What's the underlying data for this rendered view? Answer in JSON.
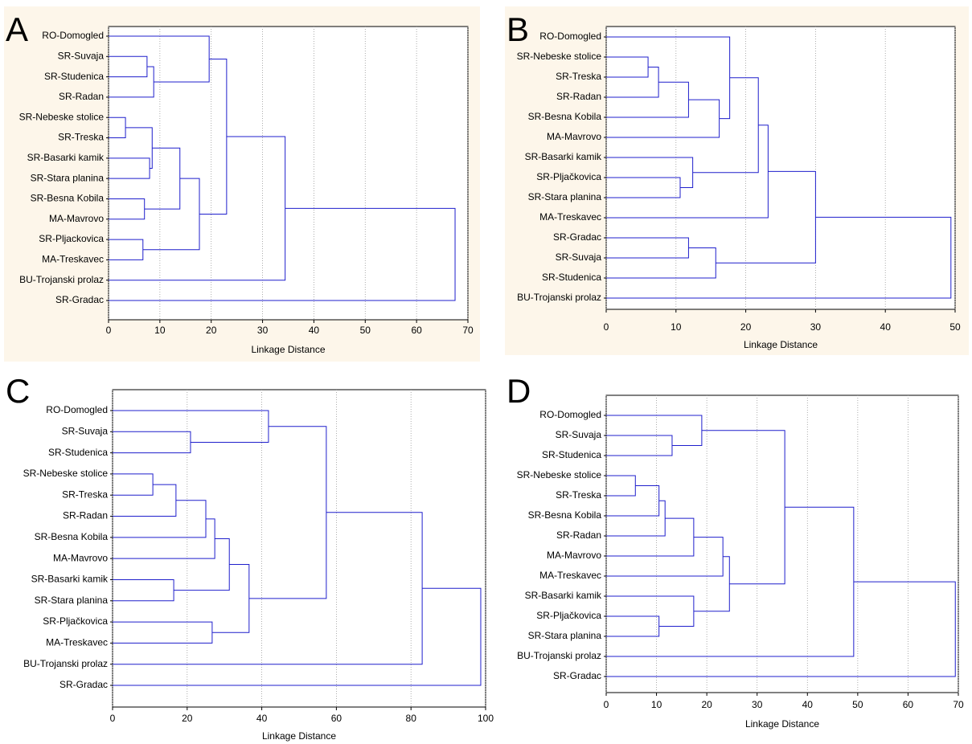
{
  "chart_data": [
    {
      "type": "dendrogram",
      "panel_label": "A",
      "x_label": "Linkage Distance",
      "color": "#1f1fcc",
      "grid": true,
      "xlim": [
        0,
        70
      ],
      "xticks": [
        0,
        10,
        20,
        30,
        40,
        50,
        60,
        70
      ],
      "leaves": [
        "RO-Domogled",
        "SR-Suvaja",
        "SR-Studenica",
        "SR-Radan",
        "SR-Nebeske stolice",
        "SR-Treska",
        "SR-Basarki kamik",
        "SR-Stara planina",
        "SR-Besna Kobila",
        "MA-Mavrovo",
        "SR-Pljackovica",
        "MA-Treskavec",
        "BU-Trojanski prolaz",
        "SR-Gradac"
      ],
      "merges": [
        {
          "join": [
            1,
            2
          ],
          "distance": 7.5
        },
        {
          "join": [
            14,
            3
          ],
          "distance": 8.8
        },
        {
          "join": [
            0,
            15
          ],
          "distance": 19.6
        },
        {
          "join": [
            4,
            5
          ],
          "distance": 3.3
        },
        {
          "join": [
            6,
            7
          ],
          "distance": 8.0
        },
        {
          "join": [
            17,
            18
          ],
          "distance": 8.5
        },
        {
          "join": [
            8,
            9
          ],
          "distance": 7.0
        },
        {
          "join": [
            19,
            20
          ],
          "distance": 13.9
        },
        {
          "join": [
            10,
            11
          ],
          "distance": 6.7
        },
        {
          "join": [
            21,
            22
          ],
          "distance": 17.7
        },
        {
          "join": [
            16,
            23
          ],
          "distance": 23.0
        },
        {
          "join": [
            24,
            12
          ],
          "distance": 34.4
        },
        {
          "join": [
            25,
            13
          ],
          "distance": 67.5
        }
      ]
    },
    {
      "type": "dendrogram",
      "panel_label": "B",
      "x_label": "Linkage Distance",
      "color": "#1f1fcc",
      "grid": true,
      "xlim": [
        0,
        50
      ],
      "xticks": [
        0,
        10,
        20,
        30,
        40,
        50
      ],
      "leaves": [
        "RO-Domogled",
        "SR-Nebeske stolice",
        "SR-Treska",
        "SR-Radan",
        "SR-Besna Kobila",
        "MA-Mavrovo",
        "SR-Basarki kamik",
        "SR-Pljačkovica",
        "SR-Stara planina",
        "MA-Treskavec",
        "SR-Gradac",
        "SR-Suvaja",
        "SR-Studenica",
        "BU-Trojanski prolaz"
      ],
      "merges": [
        {
          "join": [
            1,
            2
          ],
          "distance": 6.0
        },
        {
          "join": [
            14,
            3
          ],
          "distance": 7.5
        },
        {
          "join": [
            15,
            4
          ],
          "distance": 11.8
        },
        {
          "join": [
            16,
            5
          ],
          "distance": 16.2
        },
        {
          "join": [
            0,
            17
          ],
          "distance": 17.7
        },
        {
          "join": [
            7,
            8
          ],
          "distance": 10.6
        },
        {
          "join": [
            6,
            19
          ],
          "distance": 12.4
        },
        {
          "join": [
            18,
            20
          ],
          "distance": 21.8
        },
        {
          "join": [
            21,
            9
          ],
          "distance": 23.2
        },
        {
          "join": [
            10,
            11
          ],
          "distance": 11.8
        },
        {
          "join": [
            23,
            12
          ],
          "distance": 15.7
        },
        {
          "join": [
            22,
            24
          ],
          "distance": 30.0
        },
        {
          "join": [
            25,
            13
          ],
          "distance": 49.4
        }
      ]
    },
    {
      "type": "dendrogram",
      "panel_label": "C",
      "x_label": "Linkage Distance",
      "color": "#1f1fcc",
      "grid": true,
      "xlim": [
        0,
        100
      ],
      "xticks": [
        0,
        20,
        40,
        60,
        80,
        100
      ],
      "leaves": [
        "RO-Domogled",
        "SR-Suvaja",
        "SR-Studenica",
        "SR-Nebeske stolice",
        "SR-Treska",
        "SR-Radan",
        "SR-Besna Kobila",
        "MA-Mavrovo",
        "SR-Basarki kamik",
        "SR-Stara planina",
        "SR-Pljačkovica",
        "MA-Treskavec",
        "BU-Trojanski prolaz",
        "SR-Gradac"
      ],
      "merges": [
        {
          "join": [
            1,
            2
          ],
          "distance": 20.9
        },
        {
          "join": [
            0,
            14
          ],
          "distance": 41.8
        },
        {
          "join": [
            3,
            4
          ],
          "distance": 10.8
        },
        {
          "join": [
            16,
            5
          ],
          "distance": 17.0
        },
        {
          "join": [
            17,
            6
          ],
          "distance": 25.0
        },
        {
          "join": [
            18,
            7
          ],
          "distance": 27.4
        },
        {
          "join": [
            8,
            9
          ],
          "distance": 16.4
        },
        {
          "join": [
            19,
            20
          ],
          "distance": 31.3
        },
        {
          "join": [
            10,
            11
          ],
          "distance": 26.7
        },
        {
          "join": [
            21,
            22
          ],
          "distance": 36.6
        },
        {
          "join": [
            15,
            23
          ],
          "distance": 57.3
        },
        {
          "join": [
            24,
            12
          ],
          "distance": 83.0
        },
        {
          "join": [
            25,
            13
          ],
          "distance": 98.7
        }
      ]
    },
    {
      "type": "dendrogram",
      "panel_label": "D",
      "x_label": "Linkage Distance",
      "color": "#1f1fcc",
      "grid": true,
      "xlim": [
        0,
        70
      ],
      "xticks": [
        0,
        10,
        20,
        30,
        40,
        50,
        60,
        70
      ],
      "leaves": [
        "RO-Domogled",
        "SR-Suvaja",
        "SR-Studenica",
        "SR-Nebeske stolice",
        "SR-Treska",
        "SR-Besna Kobila",
        "SR-Radan",
        "MA-Mavrovo",
        "MA-Treskavec",
        "SR-Basarki kamik",
        "SR-Pljačkovica",
        "SR-Stara planina",
        "BU-Trojanski prolaz",
        "SR-Gradac"
      ],
      "merges": [
        {
          "join": [
            1,
            2
          ],
          "distance": 13.1
        },
        {
          "join": [
            0,
            14
          ],
          "distance": 19.0
        },
        {
          "join": [
            3,
            4
          ],
          "distance": 5.8
        },
        {
          "join": [
            16,
            5
          ],
          "distance": 10.5
        },
        {
          "join": [
            17,
            6
          ],
          "distance": 11.7
        },
        {
          "join": [
            18,
            7
          ],
          "distance": 17.4
        },
        {
          "join": [
            19,
            8
          ],
          "distance": 23.2
        },
        {
          "join": [
            10,
            11
          ],
          "distance": 10.5
        },
        {
          "join": [
            9,
            21
          ],
          "distance": 17.4
        },
        {
          "join": [
            20,
            22
          ],
          "distance": 24.5
        },
        {
          "join": [
            15,
            23
          ],
          "distance": 35.5
        },
        {
          "join": [
            24,
            12
          ],
          "distance": 49.2
        },
        {
          "join": [
            25,
            13
          ],
          "distance": 69.4
        }
      ]
    }
  ]
}
